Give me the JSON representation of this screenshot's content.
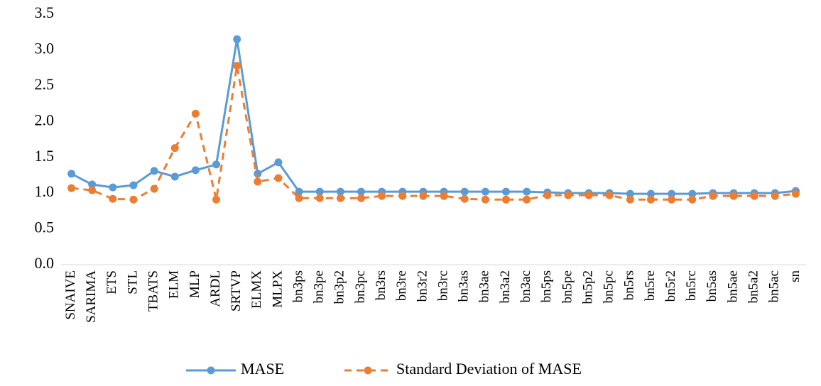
{
  "chart_data": {
    "type": "line",
    "categories": [
      "SNAIVE",
      "SARIMA",
      "ETS",
      "STL",
      "TBATS",
      "ELM",
      "MLP",
      "ARDL",
      "SRTVP",
      "ELMX",
      "MLPX",
      "bn3ps",
      "bn3pe",
      "bn3p2",
      "bn3pc",
      "bn3rs",
      "bn3re",
      "bn3r2",
      "bn3rc",
      "bn3as",
      "bn3ae",
      "bn3a2",
      "bn3ac",
      "bn5ps",
      "bn5pe",
      "bn5p2",
      "bn5pc",
      "bn5rs",
      "bn5re",
      "bn5r2",
      "bn5rc",
      "bn5as",
      "bn5ae",
      "bn5a2",
      "bn5ac",
      "sn"
    ],
    "series": [
      {
        "name": "MASE",
        "color": "#5b9bd5",
        "dash": false,
        "values": [
          1.27,
          1.12,
          1.08,
          1.11,
          1.31,
          1.23,
          1.32,
          1.4,
          3.15,
          1.27,
          1.43,
          1.02,
          1.02,
          1.02,
          1.02,
          1.02,
          1.02,
          1.02,
          1.02,
          1.02,
          1.02,
          1.02,
          1.02,
          1.01,
          1.0,
          1.0,
          1.0,
          0.99,
          0.99,
          0.99,
          0.99,
          1.0,
          1.0,
          1.0,
          1.0,
          1.03
        ]
      },
      {
        "name": "Standard Deviation of MASE",
        "color": "#ed7d31",
        "dash": true,
        "values": [
          1.07,
          1.04,
          0.92,
          0.91,
          1.06,
          1.63,
          2.11,
          0.91,
          2.78,
          1.16,
          1.21,
          0.93,
          0.93,
          0.93,
          0.93,
          0.96,
          0.96,
          0.96,
          0.96,
          0.92,
          0.91,
          0.91,
          0.91,
          0.97,
          0.97,
          0.97,
          0.97,
          0.91,
          0.91,
          0.91,
          0.91,
          0.96,
          0.96,
          0.96,
          0.96,
          0.99
        ]
      }
    ],
    "ylim": [
      0,
      3.5
    ],
    "yticks": [
      {
        "value": 0,
        "label": "0.0"
      },
      {
        "value": 0.5,
        "label": "0.5"
      },
      {
        "value": 1,
        "label": "1.0"
      },
      {
        "value": 1.5,
        "label": "1.5"
      },
      {
        "value": 2,
        "label": "2.0"
      },
      {
        "value": 2.5,
        "label": "2.5"
      },
      {
        "value": 3,
        "label": "3.0"
      },
      {
        "value": 3.5,
        "label": "3.5"
      }
    ],
    "grid": false,
    "legend": "bottom"
  }
}
